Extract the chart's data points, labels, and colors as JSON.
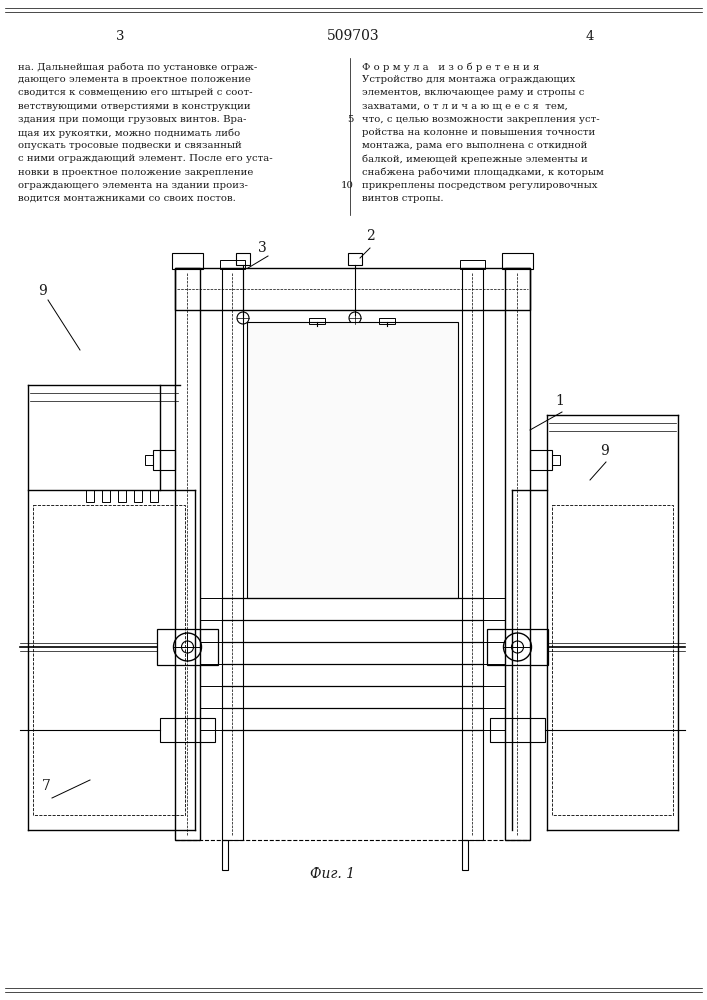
{
  "title": "509703",
  "page_left": "3",
  "page_right": "4",
  "fig_label": "Фиг. 1",
  "left_text": [
    "на. Дальнейшая работа по установке ограж-",
    "дающего элемента в проектное положение",
    "сводится к совмещению его штырей с соот-",
    "ветствующими отверстиями в конструкции",
    "здания при помощи грузовых винтов. Вра-",
    "щая их рукоятки, можно поднимать либо",
    "опускать тросовые подвески и связанный",
    "с ними ограждающий элемент. После его уста-",
    "новки в проектное положение закрепление",
    "ограждающего элемента на здании произ-",
    "водится монтажниками со своих постов."
  ],
  "right_text_title": "Ф о р м у л а   и з о б р е т е н и я",
  "right_text": [
    "Устройство для монтажа ограждающих",
    "элементов, включающее раму и стропы с",
    "захватами, о т л и ч а ю щ е е с я  тем,",
    "что, с целью возможности закрепления уст-",
    "ройства на колонне и повышения точности",
    "монтажа, рама его выполнена с откидной",
    "балкой, имеющей крепежные элементы и",
    "снабжена рабочими площадками, к которым",
    "прикреплены посредством регулировочных",
    "винтов стропы."
  ],
  "bg_color": "#ffffff",
  "text_color": "#1a1a1a",
  "drawing_color": "#000000"
}
